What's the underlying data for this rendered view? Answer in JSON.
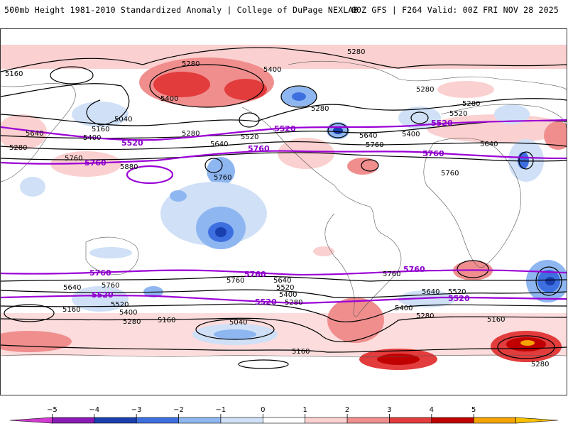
{
  "header": {
    "title_left": "500mb Height 1981-2010 Standardized Anomaly | College of DuPage NEXLAB",
    "title_right": "00Z GFS | F264 Valid: 00Z FRI NOV 28 2025"
  },
  "map": {
    "type": "global-equirectangular",
    "variable": "500mb geopotential height standardized anomaly",
    "contour_labels": [
      {
        "id": "c1",
        "text": "5280"
      },
      {
        "id": "c2",
        "text": "5280"
      },
      {
        "id": "c3",
        "text": "5400"
      },
      {
        "id": "c4",
        "text": "5160"
      },
      {
        "id": "c5",
        "text": "5400"
      },
      {
        "id": "c6",
        "text": "5280"
      },
      {
        "id": "c7",
        "text": "5280"
      },
      {
        "id": "c8",
        "text": "5280"
      },
      {
        "id": "c9",
        "text": "5520"
      },
      {
        "id": "c10",
        "text": "5280"
      },
      {
        "id": "c11",
        "text": "5040"
      },
      {
        "id": "c12",
        "text": "5160"
      },
      {
        "id": "c13",
        "text": "5640"
      },
      {
        "id": "c14",
        "text": "5400"
      },
      {
        "id": "c15",
        "text": "5280"
      },
      {
        "id": "c16",
        "text": "5520"
      },
      {
        "id": "c17",
        "text": "5640"
      },
      {
        "id": "c18",
        "text": "5640"
      },
      {
        "id": "c19",
        "text": "5400"
      },
      {
        "id": "c20",
        "text": "5760"
      },
      {
        "id": "c21",
        "text": "5640"
      },
      {
        "id": "c22",
        "text": "5760"
      },
      {
        "id": "c23",
        "text": "5880"
      },
      {
        "id": "c24",
        "text": "5760"
      },
      {
        "id": "c25",
        "text": "5760"
      },
      {
        "id": "s1",
        "text": "5640"
      },
      {
        "id": "s2",
        "text": "5760"
      },
      {
        "id": "s3",
        "text": "5520"
      },
      {
        "id": "s4",
        "text": "5400"
      },
      {
        "id": "s5",
        "text": "5160"
      },
      {
        "id": "s6",
        "text": "5280"
      },
      {
        "id": "s7",
        "text": "5160"
      },
      {
        "id": "s8",
        "text": "5040"
      },
      {
        "id": "s9",
        "text": "5640"
      },
      {
        "id": "s10",
        "text": "5520"
      },
      {
        "id": "s11",
        "text": "5400"
      },
      {
        "id": "s12",
        "text": "5280"
      },
      {
        "id": "s13",
        "text": "5760"
      },
      {
        "id": "s14",
        "text": "5760"
      },
      {
        "id": "s15",
        "text": "5160"
      },
      {
        "id": "s16",
        "text": "5640"
      },
      {
        "id": "s17",
        "text": "5520"
      },
      {
        "id": "s18",
        "text": "5400"
      },
      {
        "id": "s19",
        "text": "5280"
      },
      {
        "id": "s20",
        "text": "5160"
      },
      {
        "id": "s21",
        "text": "5280"
      }
    ],
    "purple_labels": [
      {
        "id": "p1",
        "text": "5520"
      },
      {
        "id": "p2",
        "text": "5520"
      },
      {
        "id": "p3",
        "text": "5520"
      },
      {
        "id": "p4",
        "text": "5760"
      },
      {
        "id": "p5",
        "text": "5760"
      },
      {
        "id": "p6",
        "text": "5760"
      },
      {
        "id": "p7",
        "text": "5760"
      },
      {
        "id": "p8",
        "text": "5760"
      },
      {
        "id": "p9",
        "text": "5760"
      },
      {
        "id": "p10",
        "text": "5520"
      },
      {
        "id": "p11",
        "text": "5520"
      },
      {
        "id": "p12",
        "text": "5520"
      }
    ]
  },
  "colorbar": {
    "ticks": [
      "−5",
      "−4",
      "−3",
      "−2",
      "−1",
      "0",
      "1",
      "2",
      "3",
      "4",
      "5"
    ],
    "colors": [
      "#d13bd1",
      "#8a1bb5",
      "#1a3fae",
      "#3d6fe0",
      "#8eb6f0",
      "#cfe0f7",
      "#ffffff",
      "#fbd0d0",
      "#f08e8e",
      "#e23c3c",
      "#c00000",
      "#f5a300",
      "#f8c000"
    ]
  }
}
